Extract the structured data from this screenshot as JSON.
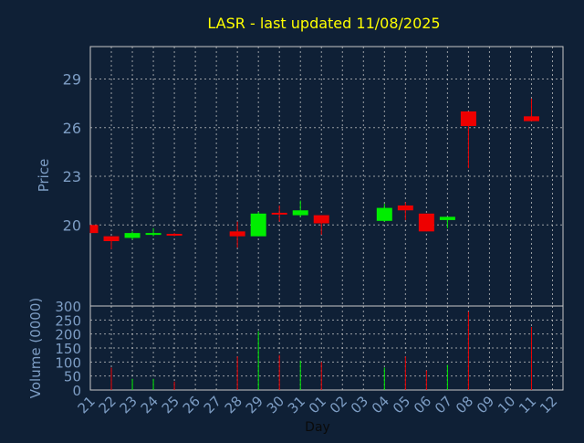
{
  "chart_data": {
    "type": "candlestick",
    "title": "LASR - last updated 11/08/2025",
    "xlabel": "Day",
    "price_ylabel": "Price",
    "volume_ylabel": "Volume (0000)",
    "categories": [
      "21",
      "22",
      "23",
      "24",
      "25",
      "26",
      "27",
      "28",
      "29",
      "30",
      "31",
      "01",
      "02",
      "03",
      "04",
      "05",
      "06",
      "07",
      "08",
      "09",
      "10",
      "11",
      "12"
    ],
    "price_ylim": [
      15,
      31
    ],
    "price_ticks": [
      20,
      23,
      26,
      29
    ],
    "volume_ylim": [
      0,
      300
    ],
    "volume_ticks": [
      0,
      50,
      100,
      150,
      200,
      250,
      300
    ],
    "grid": true,
    "colors": {
      "background": "#0f2036",
      "grid": "#c8c8c8",
      "title": "#ffff00",
      "axis_text": "#7d9dc4",
      "up": "#00ee00",
      "down": "#ee0000"
    },
    "candles": [
      {
        "day": "21",
        "open": 20.0,
        "close": 19.5,
        "high": 20.0,
        "low": 19.5,
        "volume": 0
      },
      {
        "day": "22",
        "open": 19.3,
        "close": 19.0,
        "high": 19.3,
        "low": 18.5,
        "volume": 80
      },
      {
        "day": "23",
        "open": 19.2,
        "close": 19.5,
        "high": 19.6,
        "low": 19.1,
        "volume": 40
      },
      {
        "day": "24",
        "open": 19.4,
        "close": 19.5,
        "high": 19.8,
        "low": 19.3,
        "volume": 40
      },
      {
        "day": "25",
        "open": 19.45,
        "close": 19.35,
        "high": 19.5,
        "low": 19.3,
        "volume": 30
      },
      {
        "day": "28",
        "open": 19.6,
        "close": 19.3,
        "high": 20.2,
        "low": 18.6,
        "volume": 120
      },
      {
        "day": "29",
        "open": 19.3,
        "close": 20.7,
        "high": 20.8,
        "low": 19.3,
        "volume": 210
      },
      {
        "day": "30",
        "open": 20.75,
        "close": 20.65,
        "high": 21.2,
        "low": 20.2,
        "volume": 125
      },
      {
        "day": "31",
        "open": 20.6,
        "close": 20.9,
        "high": 21.5,
        "low": 20.5,
        "volume": 105
      },
      {
        "day": "01",
        "open": 20.6,
        "close": 20.1,
        "high": 20.6,
        "low": 19.4,
        "volume": 100
      },
      {
        "day": "04",
        "open": 20.25,
        "close": 21.05,
        "high": 21.3,
        "low": 20.2,
        "volume": 80
      },
      {
        "day": "05",
        "open": 21.2,
        "close": 20.9,
        "high": 21.4,
        "low": 20.3,
        "volume": 120
      },
      {
        "day": "06",
        "open": 20.7,
        "close": 19.6,
        "high": 20.7,
        "low": 19.6,
        "volume": 70
      },
      {
        "day": "07",
        "open": 20.3,
        "close": 20.5,
        "high": 20.5,
        "low": 19.8,
        "volume": 90
      },
      {
        "day": "08",
        "open": 27.0,
        "close": 26.1,
        "high": 27.0,
        "low": 23.5,
        "volume": 280
      },
      {
        "day": "11",
        "open": 26.7,
        "close": 26.4,
        "high": 27.8,
        "low": 26.4,
        "volume": 225
      }
    ]
  }
}
